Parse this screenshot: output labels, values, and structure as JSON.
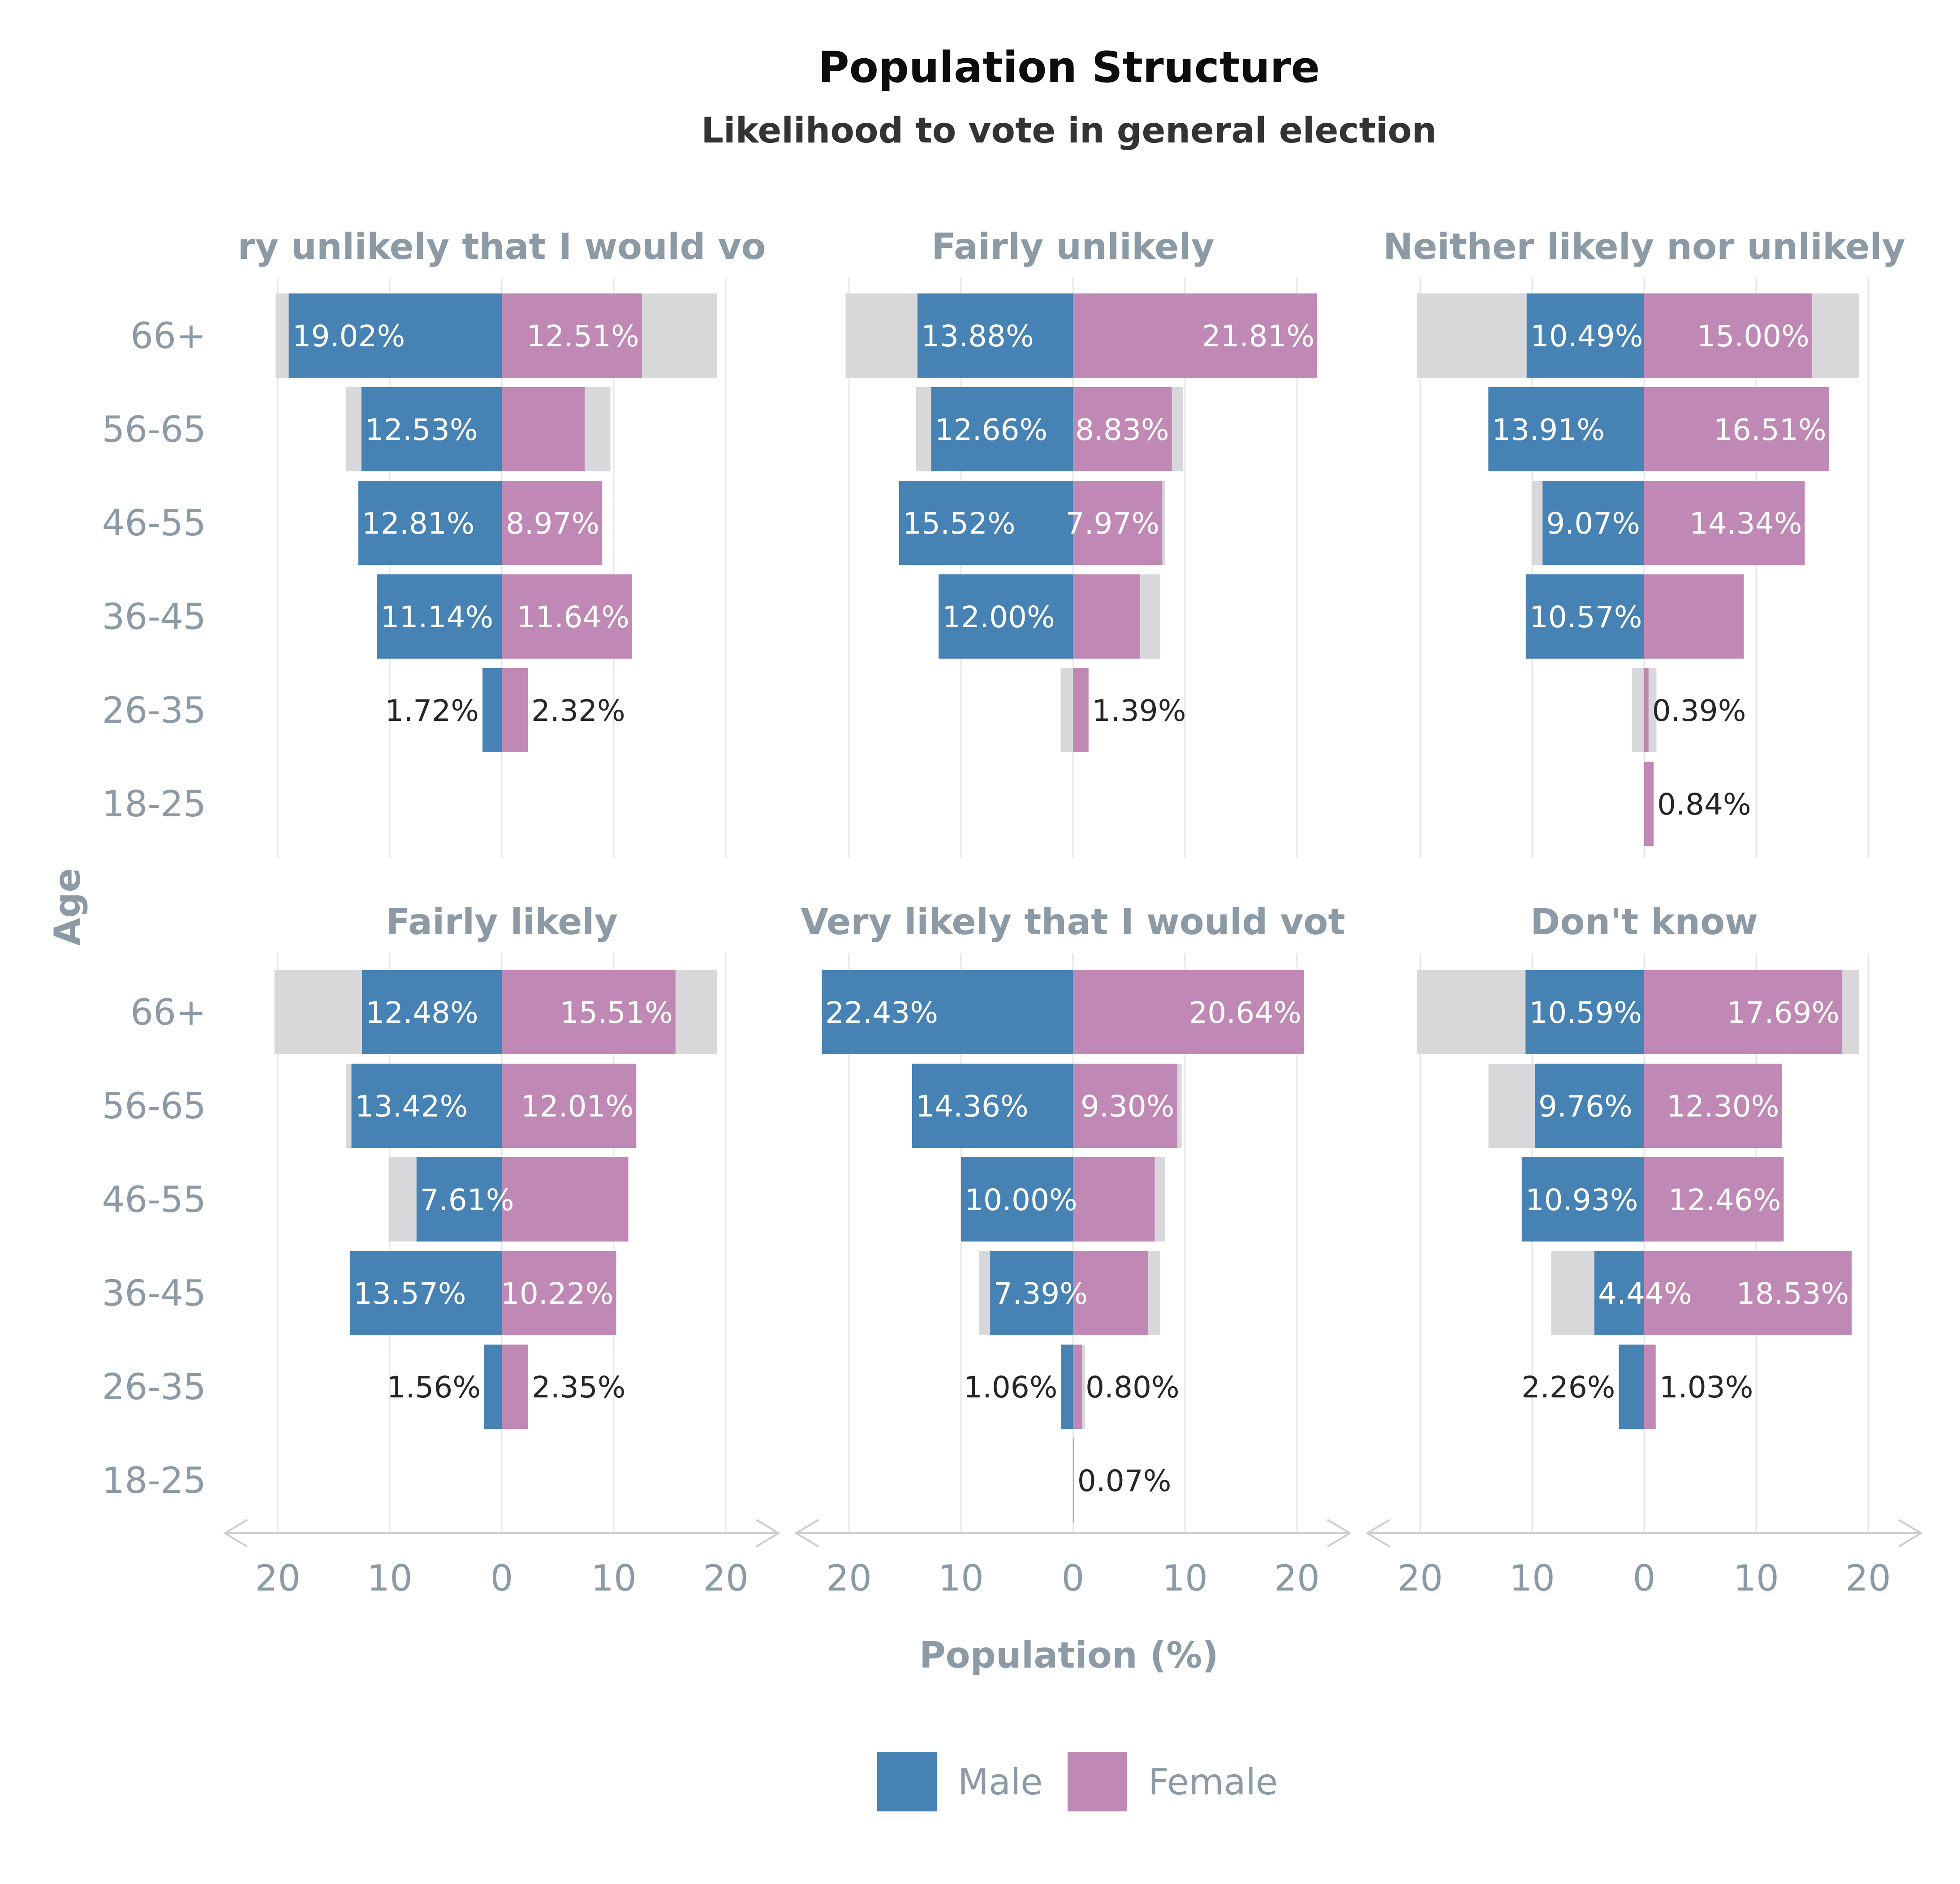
{
  "chart_data": {
    "type": "bar",
    "subtype": "population-pyramid-facets",
    "title": "Population Structure",
    "subtitle": "Likelihood to vote in general election",
    "xlabel": "Population (%)",
    "ylabel": "Age",
    "xlim": [
      -20,
      20
    ],
    "x_ticks": [
      "20",
      "10",
      "0",
      "10",
      "20"
    ],
    "age_groups": [
      "66+",
      "56-65",
      "46-55",
      "36-45",
      "26-35",
      "18-25"
    ],
    "legend": {
      "placement": "bottom-center",
      "items": [
        {
          "name": "Male",
          "color": "#4682b4"
        },
        {
          "name": "Female",
          "color": "#c088b4"
        }
      ]
    },
    "background_bar_color": "#d8d8da",
    "facets": [
      {
        "title": "Very unlikely that I would vote",
        "title_shown": "ry unlikely that I would vo",
        "male": [
          19.02,
          12.53,
          12.81,
          11.14,
          1.72,
          null
        ],
        "female": [
          12.51,
          7.4,
          8.97,
          11.64,
          2.32,
          null
        ],
        "male_labels": [
          "19.02%",
          "12.53%",
          "12.81%",
          "11.14%",
          "1.72%",
          ""
        ],
        "female_labels": [
          "12.51%",
          "",
          "8.97%",
          "11.64%",
          "2.32%",
          ""
        ],
        "bg_male": [
          20.2,
          13.9,
          null,
          null,
          null,
          null
        ],
        "bg_female": [
          19.2,
          9.7,
          null,
          null,
          null,
          null
        ]
      },
      {
        "title": "Fairly unlikely",
        "title_shown": "Fairly unlikely",
        "male": [
          13.88,
          12.66,
          15.52,
          12.0,
          null,
          null
        ],
        "female": [
          21.81,
          8.83,
          7.97,
          6.0,
          1.39,
          null
        ],
        "male_labels": [
          "13.88%",
          "12.66%",
          "15.52%",
          "12.00%",
          "",
          ""
        ],
        "female_labels": [
          "21.81%",
          "8.83%",
          "7.97%",
          "",
          "1.39%",
          ""
        ],
        "bg_male": [
          20.3,
          14.0,
          null,
          null,
          1.1,
          null
        ],
        "bg_female": [
          null,
          9.8,
          8.2,
          7.8,
          null,
          null
        ]
      },
      {
        "title": "Neither likely nor unlikely",
        "title_shown": "Neither likely nor unlikely",
        "male": [
          10.49,
          13.91,
          9.07,
          10.57,
          null,
          null
        ],
        "female": [
          15.0,
          16.51,
          14.34,
          8.9,
          0.39,
          0.84
        ],
        "male_labels": [
          "10.49%",
          "13.91%",
          "9.07%",
          "10.57%",
          "",
          ""
        ],
        "female_labels": [
          "15.00%",
          "16.51%",
          "14.34%",
          "",
          "0.39%",
          "0.84%"
        ],
        "bg_male": [
          20.3,
          null,
          10.0,
          null,
          1.1,
          null
        ],
        "bg_female": [
          19.2,
          null,
          null,
          null,
          1.1,
          null
        ]
      },
      {
        "title": "Fairly likely",
        "title_shown": "Fairly likely",
        "male": [
          12.48,
          13.42,
          7.61,
          13.57,
          1.56,
          null
        ],
        "female": [
          15.51,
          12.01,
          11.3,
          10.22,
          2.35,
          null
        ],
        "male_labels": [
          "12.48%",
          "13.42%",
          "7.61%",
          "13.57%",
          "1.56%",
          ""
        ],
        "female_labels": [
          "15.51%",
          "12.01%",
          "",
          "10.22%",
          "2.35%",
          ""
        ],
        "bg_male": [
          20.3,
          13.9,
          10.1,
          null,
          null,
          null
        ],
        "bg_female": [
          19.2,
          null,
          null,
          null,
          null,
          null
        ]
      },
      {
        "title": "Very likely that I would vote",
        "title_shown": "Very likely that I would vot",
        "male": [
          22.43,
          14.36,
          10.0,
          7.39,
          1.06,
          null
        ],
        "female": [
          20.64,
          9.3,
          7.3,
          6.7,
          0.8,
          0.07
        ],
        "male_labels": [
          "22.43%",
          "14.36%",
          "10.00%",
          "7.39%",
          "1.06%",
          ""
        ],
        "female_labels": [
          "20.64%",
          "9.30%",
          "",
          "",
          "0.80%",
          "0.07%"
        ],
        "bg_male": [
          null,
          null,
          null,
          8.4,
          null,
          null
        ],
        "bg_female": [
          null,
          9.7,
          8.2,
          7.8,
          1.1,
          null
        ]
      },
      {
        "title": "Don't know",
        "title_shown": "Don't know",
        "male": [
          10.59,
          9.76,
          10.93,
          4.44,
          2.26,
          null
        ],
        "female": [
          17.69,
          12.3,
          12.46,
          18.53,
          1.03,
          null
        ],
        "male_labels": [
          "10.59%",
          "9.76%",
          "10.93%",
          "4.44%",
          "2.26%",
          ""
        ],
        "female_labels": [
          "17.69%",
          "12.30%",
          "12.46%",
          "18.53%",
          "1.03%",
          ""
        ],
        "bg_male": [
          20.3,
          13.9,
          null,
          8.3,
          null,
          null
        ],
        "bg_female": [
          19.2,
          null,
          null,
          null,
          null,
          null
        ]
      }
    ]
  }
}
